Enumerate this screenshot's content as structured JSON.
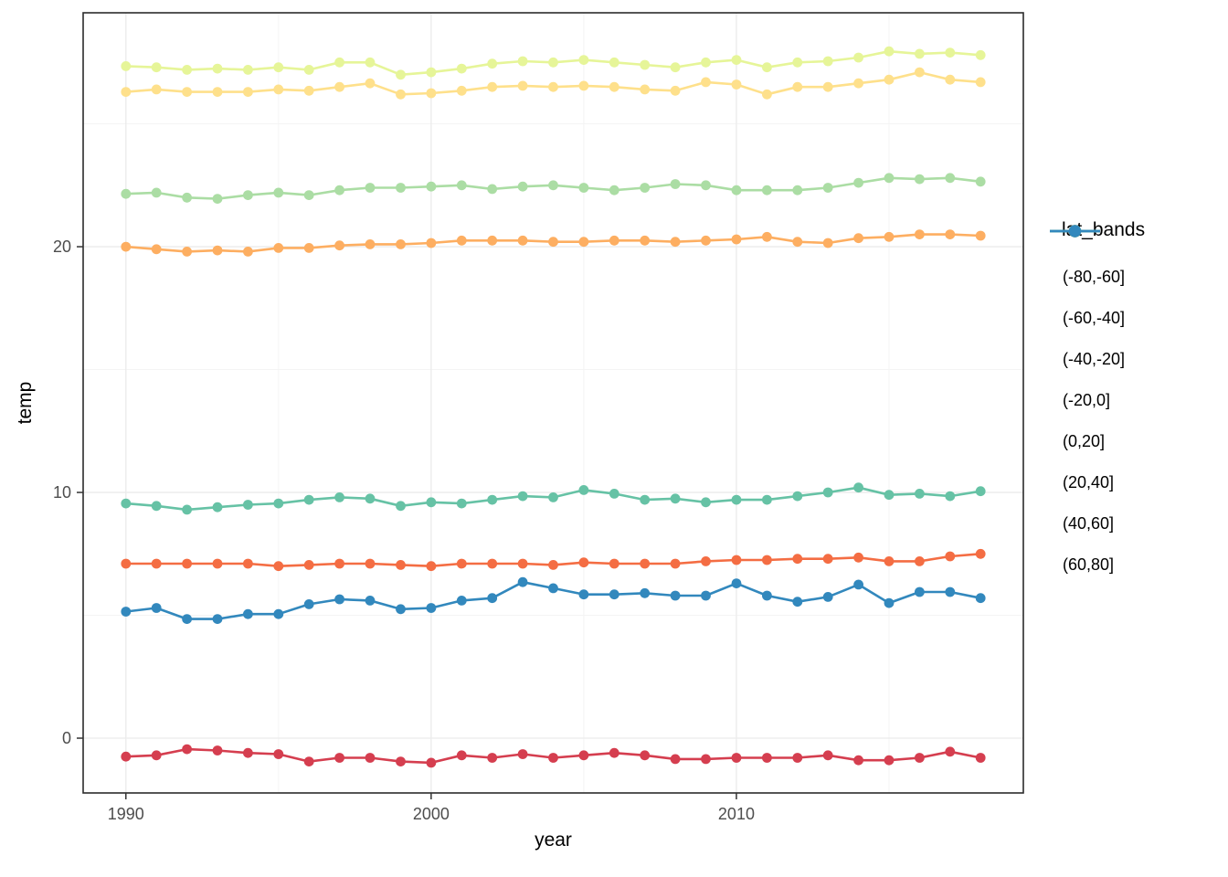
{
  "chart_data": {
    "type": "line",
    "xlabel": "year",
    "ylabel": "temp",
    "legend_title": "lat_bands",
    "legend_position": "right",
    "grid": true,
    "xlim": [
      1988.6,
      2019.4
    ],
    "ylim": [
      -2.23,
      29.52
    ],
    "x_ticks": [
      1990,
      2000,
      2010
    ],
    "x_tick_labels": [
      "1990",
      "2000",
      "2010"
    ],
    "y_ticks": [
      0,
      10,
      20
    ],
    "y_tick_labels": [
      "0",
      "10",
      "20"
    ],
    "x_minor_ticks": [
      1995,
      2005,
      2015
    ],
    "y_minor_ticks": [
      5,
      15,
      25
    ],
    "x": [
      1990,
      1991,
      1992,
      1993,
      1994,
      1995,
      1996,
      1997,
      1998,
      1999,
      2000,
      2001,
      2002,
      2003,
      2004,
      2005,
      2006,
      2007,
      2008,
      2009,
      2010,
      2011,
      2012,
      2013,
      2014,
      2015,
      2016,
      2017,
      2018
    ],
    "series": [
      {
        "name": "(-80,-60]",
        "color": "#d53e4f",
        "values": [
          -0.75,
          -0.7,
          -0.45,
          -0.5,
          -0.6,
          -0.65,
          -0.95,
          -0.8,
          -0.8,
          -0.95,
          -1.0,
          -0.7,
          -0.8,
          -0.65,
          -0.8,
          -0.7,
          -0.6,
          -0.7,
          -0.85,
          -0.85,
          -0.8,
          -0.8,
          -0.8,
          -0.7,
          -0.9,
          -0.9,
          -0.8,
          -0.55,
          -0.8
        ]
      },
      {
        "name": "(-60,-40]",
        "color": "#f46d43",
        "values": [
          7.1,
          7.1,
          7.1,
          7.1,
          7.1,
          7.0,
          7.05,
          7.1,
          7.1,
          7.05,
          7.0,
          7.1,
          7.1,
          7.1,
          7.05,
          7.15,
          7.1,
          7.1,
          7.1,
          7.2,
          7.25,
          7.25,
          7.3,
          7.3,
          7.35,
          7.2,
          7.2,
          7.4,
          7.5
        ]
      },
      {
        "name": "(-40,-20]",
        "color": "#fdae61",
        "values": [
          20.0,
          19.9,
          19.8,
          19.85,
          19.8,
          19.95,
          19.95,
          20.05,
          20.1,
          20.1,
          20.15,
          20.25,
          20.25,
          20.25,
          20.2,
          20.2,
          20.25,
          20.25,
          20.2,
          20.25,
          20.3,
          20.4,
          20.2,
          20.15,
          20.35,
          20.4,
          20.5,
          20.5,
          20.45
        ]
      },
      {
        "name": "(-20,0]",
        "color": "#fee08b",
        "values": [
          26.3,
          26.4,
          26.3,
          26.3,
          26.3,
          26.4,
          26.35,
          26.5,
          26.65,
          26.2,
          26.25,
          26.35,
          26.5,
          26.55,
          26.5,
          26.55,
          26.5,
          26.4,
          26.35,
          26.7,
          26.6,
          26.2,
          26.5,
          26.5,
          26.65,
          26.8,
          27.1,
          26.8,
          26.7
        ]
      },
      {
        "name": "(0,20]",
        "color": "#e6f598",
        "values": [
          27.35,
          27.3,
          27.2,
          27.25,
          27.2,
          27.3,
          27.2,
          27.5,
          27.5,
          27.0,
          27.1,
          27.25,
          27.45,
          27.55,
          27.5,
          27.6,
          27.5,
          27.4,
          27.3,
          27.5,
          27.6,
          27.3,
          27.5,
          27.55,
          27.7,
          27.95,
          27.85,
          27.9,
          27.8
        ]
      },
      {
        "name": "(20,40]",
        "color": "#abdda4",
        "values": [
          22.15,
          22.2,
          22.0,
          21.95,
          22.1,
          22.2,
          22.1,
          22.3,
          22.4,
          22.4,
          22.45,
          22.5,
          22.35,
          22.45,
          22.5,
          22.4,
          22.3,
          22.4,
          22.55,
          22.5,
          22.3,
          22.3,
          22.3,
          22.4,
          22.6,
          22.8,
          22.75,
          22.8,
          22.65
        ]
      },
      {
        "name": "(40,60]",
        "color": "#66c2a5",
        "values": [
          9.55,
          9.45,
          9.3,
          9.4,
          9.5,
          9.55,
          9.7,
          9.8,
          9.75,
          9.45,
          9.6,
          9.55,
          9.7,
          9.85,
          9.8,
          10.1,
          9.95,
          9.7,
          9.75,
          9.6,
          9.7,
          9.7,
          9.85,
          10.0,
          10.2,
          9.9,
          9.95,
          9.85,
          10.05
        ]
      },
      {
        "name": "(60,80]",
        "color": "#3288bd",
        "values": [
          5.15,
          5.3,
          4.85,
          4.85,
          5.05,
          5.05,
          5.45,
          5.65,
          5.6,
          5.25,
          5.3,
          5.6,
          5.7,
          6.35,
          6.1,
          5.85,
          5.85,
          5.9,
          5.8,
          5.8,
          6.3,
          5.8,
          5.55,
          5.75,
          6.25,
          5.5,
          5.95,
          5.95,
          5.7
        ]
      }
    ],
    "panel_style": {
      "background": "#ffffff",
      "border_color": "#2b2b2b",
      "grid_major_color": "#ebebeb",
      "grid_minor_color": "#f3f3f3",
      "tick_color": "#333333",
      "tick_label_color": "#4d4d4d"
    }
  }
}
